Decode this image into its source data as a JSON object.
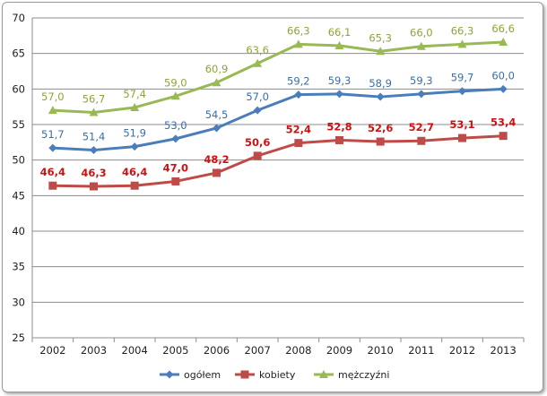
{
  "chart_data": {
    "type": "line",
    "title": "",
    "xlabel": "",
    "ylabel": "",
    "ylim": [
      25,
      70
    ],
    "yticks": [
      "25",
      "30",
      "35",
      "40",
      "45",
      "50",
      "55",
      "60",
      "65",
      "70"
    ],
    "categories": [
      "2002",
      "2003",
      "2004",
      "2005",
      "2006",
      "2007",
      "2008",
      "2009",
      "2010",
      "2011",
      "2012",
      "2013"
    ],
    "grid": true,
    "legend_position": "bottom",
    "series": [
      {
        "name": "ogółem",
        "color": "#4a7ebb",
        "label_color": "#3a6ea5",
        "marker": "diamond",
        "values": [
          51.7,
          51.4,
          51.9,
          53.0,
          54.5,
          57.0,
          59.2,
          59.3,
          58.9,
          59.3,
          59.7,
          60.0
        ],
        "labels": [
          "51,7",
          "51,4",
          "51,9",
          "53,0",
          "54,5",
          "57,0",
          "59,2",
          "59,3",
          "58,9",
          "59,3",
          "59,7",
          "60,0"
        ]
      },
      {
        "name": "kobiety",
        "color": "#be4b48",
        "label_color": "#d01010",
        "marker": "square",
        "values": [
          46.4,
          46.3,
          46.4,
          47.0,
          48.2,
          50.6,
          52.4,
          52.8,
          52.6,
          52.7,
          53.1,
          53.4
        ],
        "labels": [
          "46,4",
          "46,3",
          "46,4",
          "47,0",
          "48,2",
          "50,6",
          "52,4",
          "52,8",
          "52,6",
          "52,7",
          "53,1",
          "53,4"
        ]
      },
      {
        "name": "mężczyźni",
        "color": "#98b954",
        "label_color": "#8aa636",
        "marker": "triangle",
        "values": [
          57.0,
          56.7,
          57.4,
          59.0,
          60.9,
          63.6,
          66.3,
          66.1,
          65.3,
          66.0,
          66.3,
          66.6
        ],
        "labels": [
          "57,0",
          "56,7",
          "57,4",
          "59,0",
          "60,9",
          "63,6",
          "66,3",
          "66,1",
          "65,3",
          "66,0",
          "66,3",
          "66,6"
        ]
      }
    ]
  }
}
